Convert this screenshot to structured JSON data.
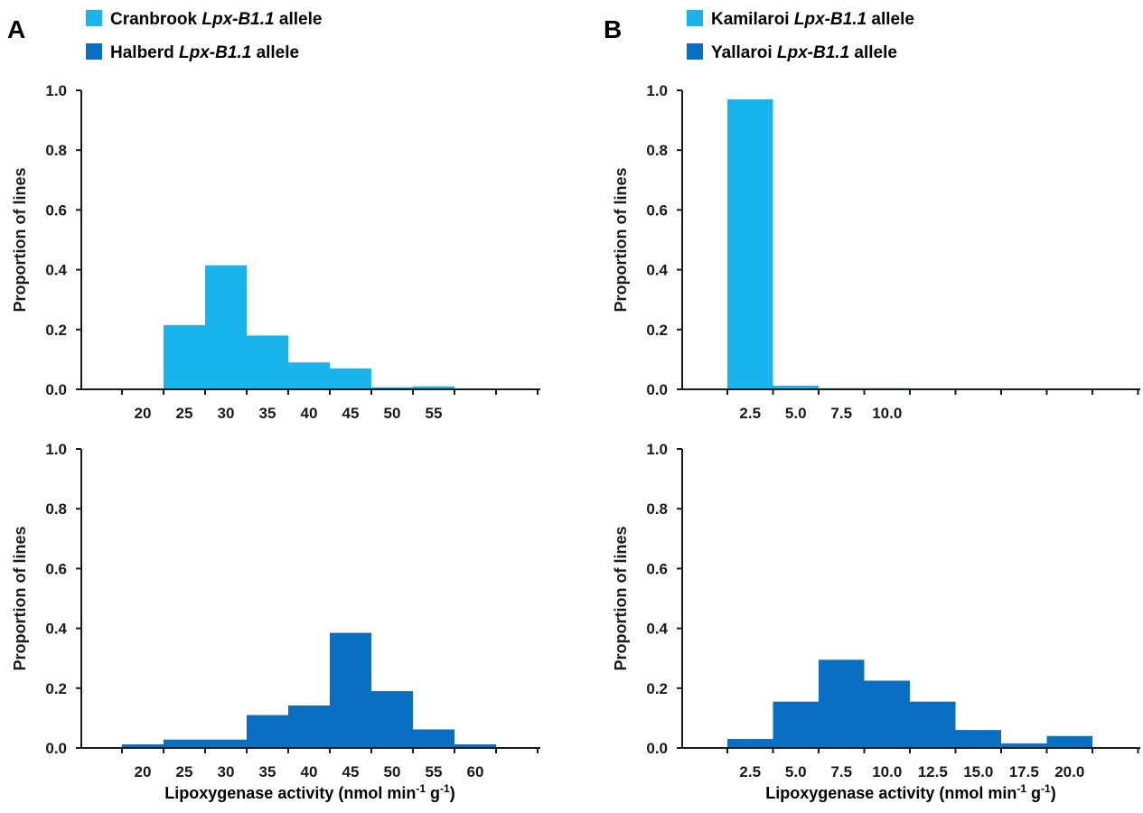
{
  "panels": [
    {
      "letter": "A",
      "legend": [
        {
          "name": "Cranbrook",
          "gene": "Lpx-B1.1",
          "suffix": "allele",
          "color": "#1ab4ec"
        },
        {
          "name": "Halberd",
          "gene": "Lpx-B1.1",
          "suffix": "allele",
          "color": "#0a6fc2"
        }
      ]
    },
    {
      "letter": "B",
      "legend": [
        {
          "name": "Kamilaroi",
          "gene": "Lpx-B1.1",
          "suffix": "allele",
          "color": "#1ab4ec"
        },
        {
          "name": "Yallaroi",
          "gene": "Lpx-B1.1",
          "suffix": "allele",
          "color": "#0a6fc2"
        }
      ]
    }
  ],
  "xlabel": {
    "main": "Lipoxygenase activity (nmol min",
    "sup1": "-1",
    "mid": " g",
    "sup2": "-1",
    "end": ")"
  },
  "chart_data": [
    {
      "type": "bar",
      "panel": "A",
      "series_name": "Cranbrook Lpx-B1.1 allele",
      "color": "#1ab4ec",
      "categories": [
        "20",
        "25",
        "30",
        "35",
        "40",
        "45",
        "50",
        "55"
      ],
      "values": [
        0.0,
        0.215,
        0.415,
        0.18,
        0.09,
        0.07,
        0.007,
        0.01
      ],
      "ylabel": "Proportion of lines",
      "yticks": [
        "0.0",
        "0.2",
        "0.4",
        "0.6",
        "0.8",
        "1.0"
      ],
      "ylim": [
        0,
        1.0
      ]
    },
    {
      "type": "bar",
      "panel": "A",
      "series_name": "Halberd Lpx-B1.1 allele",
      "color": "#0a6fc2",
      "categories": [
        "20",
        "25",
        "30",
        "35",
        "40",
        "45",
        "50",
        "55",
        "60"
      ],
      "values": [
        0.012,
        0.028,
        0.028,
        0.11,
        0.142,
        0.385,
        0.19,
        0.062,
        0.012
      ],
      "ylabel": "Proportion of lines",
      "xlabel": "Lipoxygenase activity (nmol min-1 g-1)",
      "yticks": [
        "0.0",
        "0.2",
        "0.4",
        "0.6",
        "0.8",
        "1.0"
      ],
      "ylim": [
        0,
        1.0
      ]
    },
    {
      "type": "bar",
      "panel": "B",
      "series_name": "Kamilaroi Lpx-B1.1 allele",
      "color": "#1ab4ec",
      "categories": [
        "2.5",
        "5.0",
        "7.5",
        "10.0"
      ],
      "values": [
        0.97,
        0.012,
        0.004,
        0.004
      ],
      "ylabel": "Proportion of lines",
      "yticks": [
        "0.0",
        "0.2",
        "0.4",
        "0.6",
        "0.8",
        "1.0"
      ],
      "ylim": [
        0,
        1.0
      ]
    },
    {
      "type": "bar",
      "panel": "B",
      "series_name": "Yallaroi Lpx-B1.1 allele",
      "color": "#0a6fc2",
      "categories": [
        "2.5",
        "5.0",
        "7.5",
        "10.0",
        "12.5",
        "15.0",
        "17.5",
        "20.0"
      ],
      "values": [
        0.03,
        0.155,
        0.295,
        0.225,
        0.155,
        0.06,
        0.015,
        0.04
      ],
      "ylabel": "Proportion of lines",
      "xlabel": "Lipoxygenase activity (nmol min-1 g-1)",
      "yticks": [
        "0.0",
        "0.2",
        "0.4",
        "0.6",
        "0.8",
        "1.0"
      ],
      "ylim": [
        0,
        1.0
      ]
    }
  ]
}
